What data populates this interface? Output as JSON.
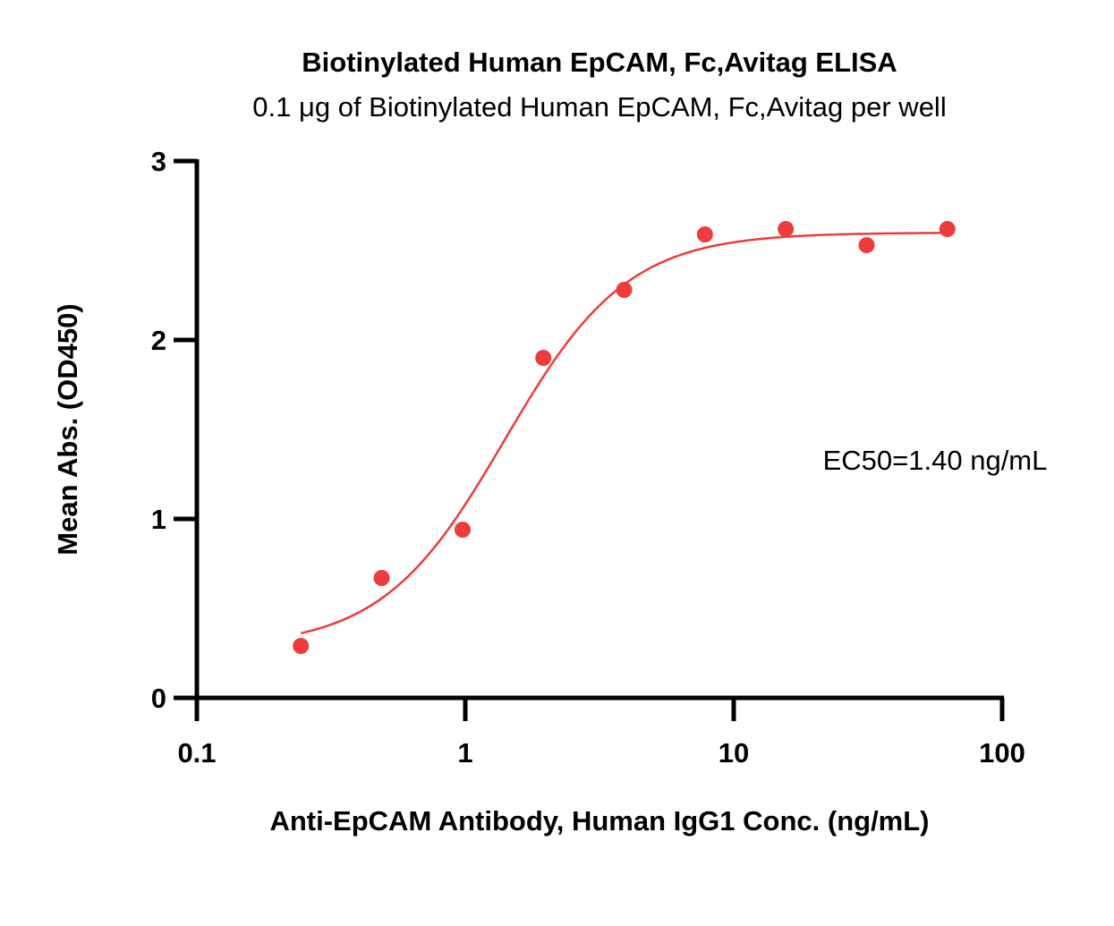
{
  "chart_data": {
    "type": "scatter",
    "title": "Biotinylated Human EpCAM, Fc,Avitag ELISA",
    "subtitle": "0.1 μg of Biotinylated Human EpCAM, Fc,Avitag per well",
    "xlabel": "Anti-EpCAM Antibody, Human IgG1 Conc. (ng/mL)",
    "ylabel": "Mean Abs. (OD450)",
    "x_scale": "log",
    "xlim": [
      0.1,
      100
    ],
    "ylim": [
      0,
      3
    ],
    "x_ticks": [
      0.1,
      1,
      10,
      100
    ],
    "x_tick_labels": [
      "0.1",
      "1",
      "10",
      "100"
    ],
    "y_ticks": [
      0,
      1,
      2,
      3
    ],
    "y_tick_labels": [
      "0",
      "1",
      "2",
      "3"
    ],
    "grid": false,
    "legend": "none",
    "color": "#ee3b3b",
    "series": [
      {
        "x": [
          0.244,
          0.488,
          0.977,
          1.953,
          3.906,
          7.813,
          15.625,
          31.25,
          62.5
        ],
        "y": [
          0.29,
          0.67,
          0.94,
          1.9,
          2.28,
          2.59,
          2.62,
          2.53,
          2.62
        ]
      }
    ],
    "fit": {
      "model": "4PL",
      "bottom": 0.28,
      "top": 2.6,
      "ec50": 1.4,
      "hill": 1.9,
      "x_range": [
        0.244,
        62.5
      ]
    },
    "annotation": "EC50=1.40 ng/mL"
  }
}
